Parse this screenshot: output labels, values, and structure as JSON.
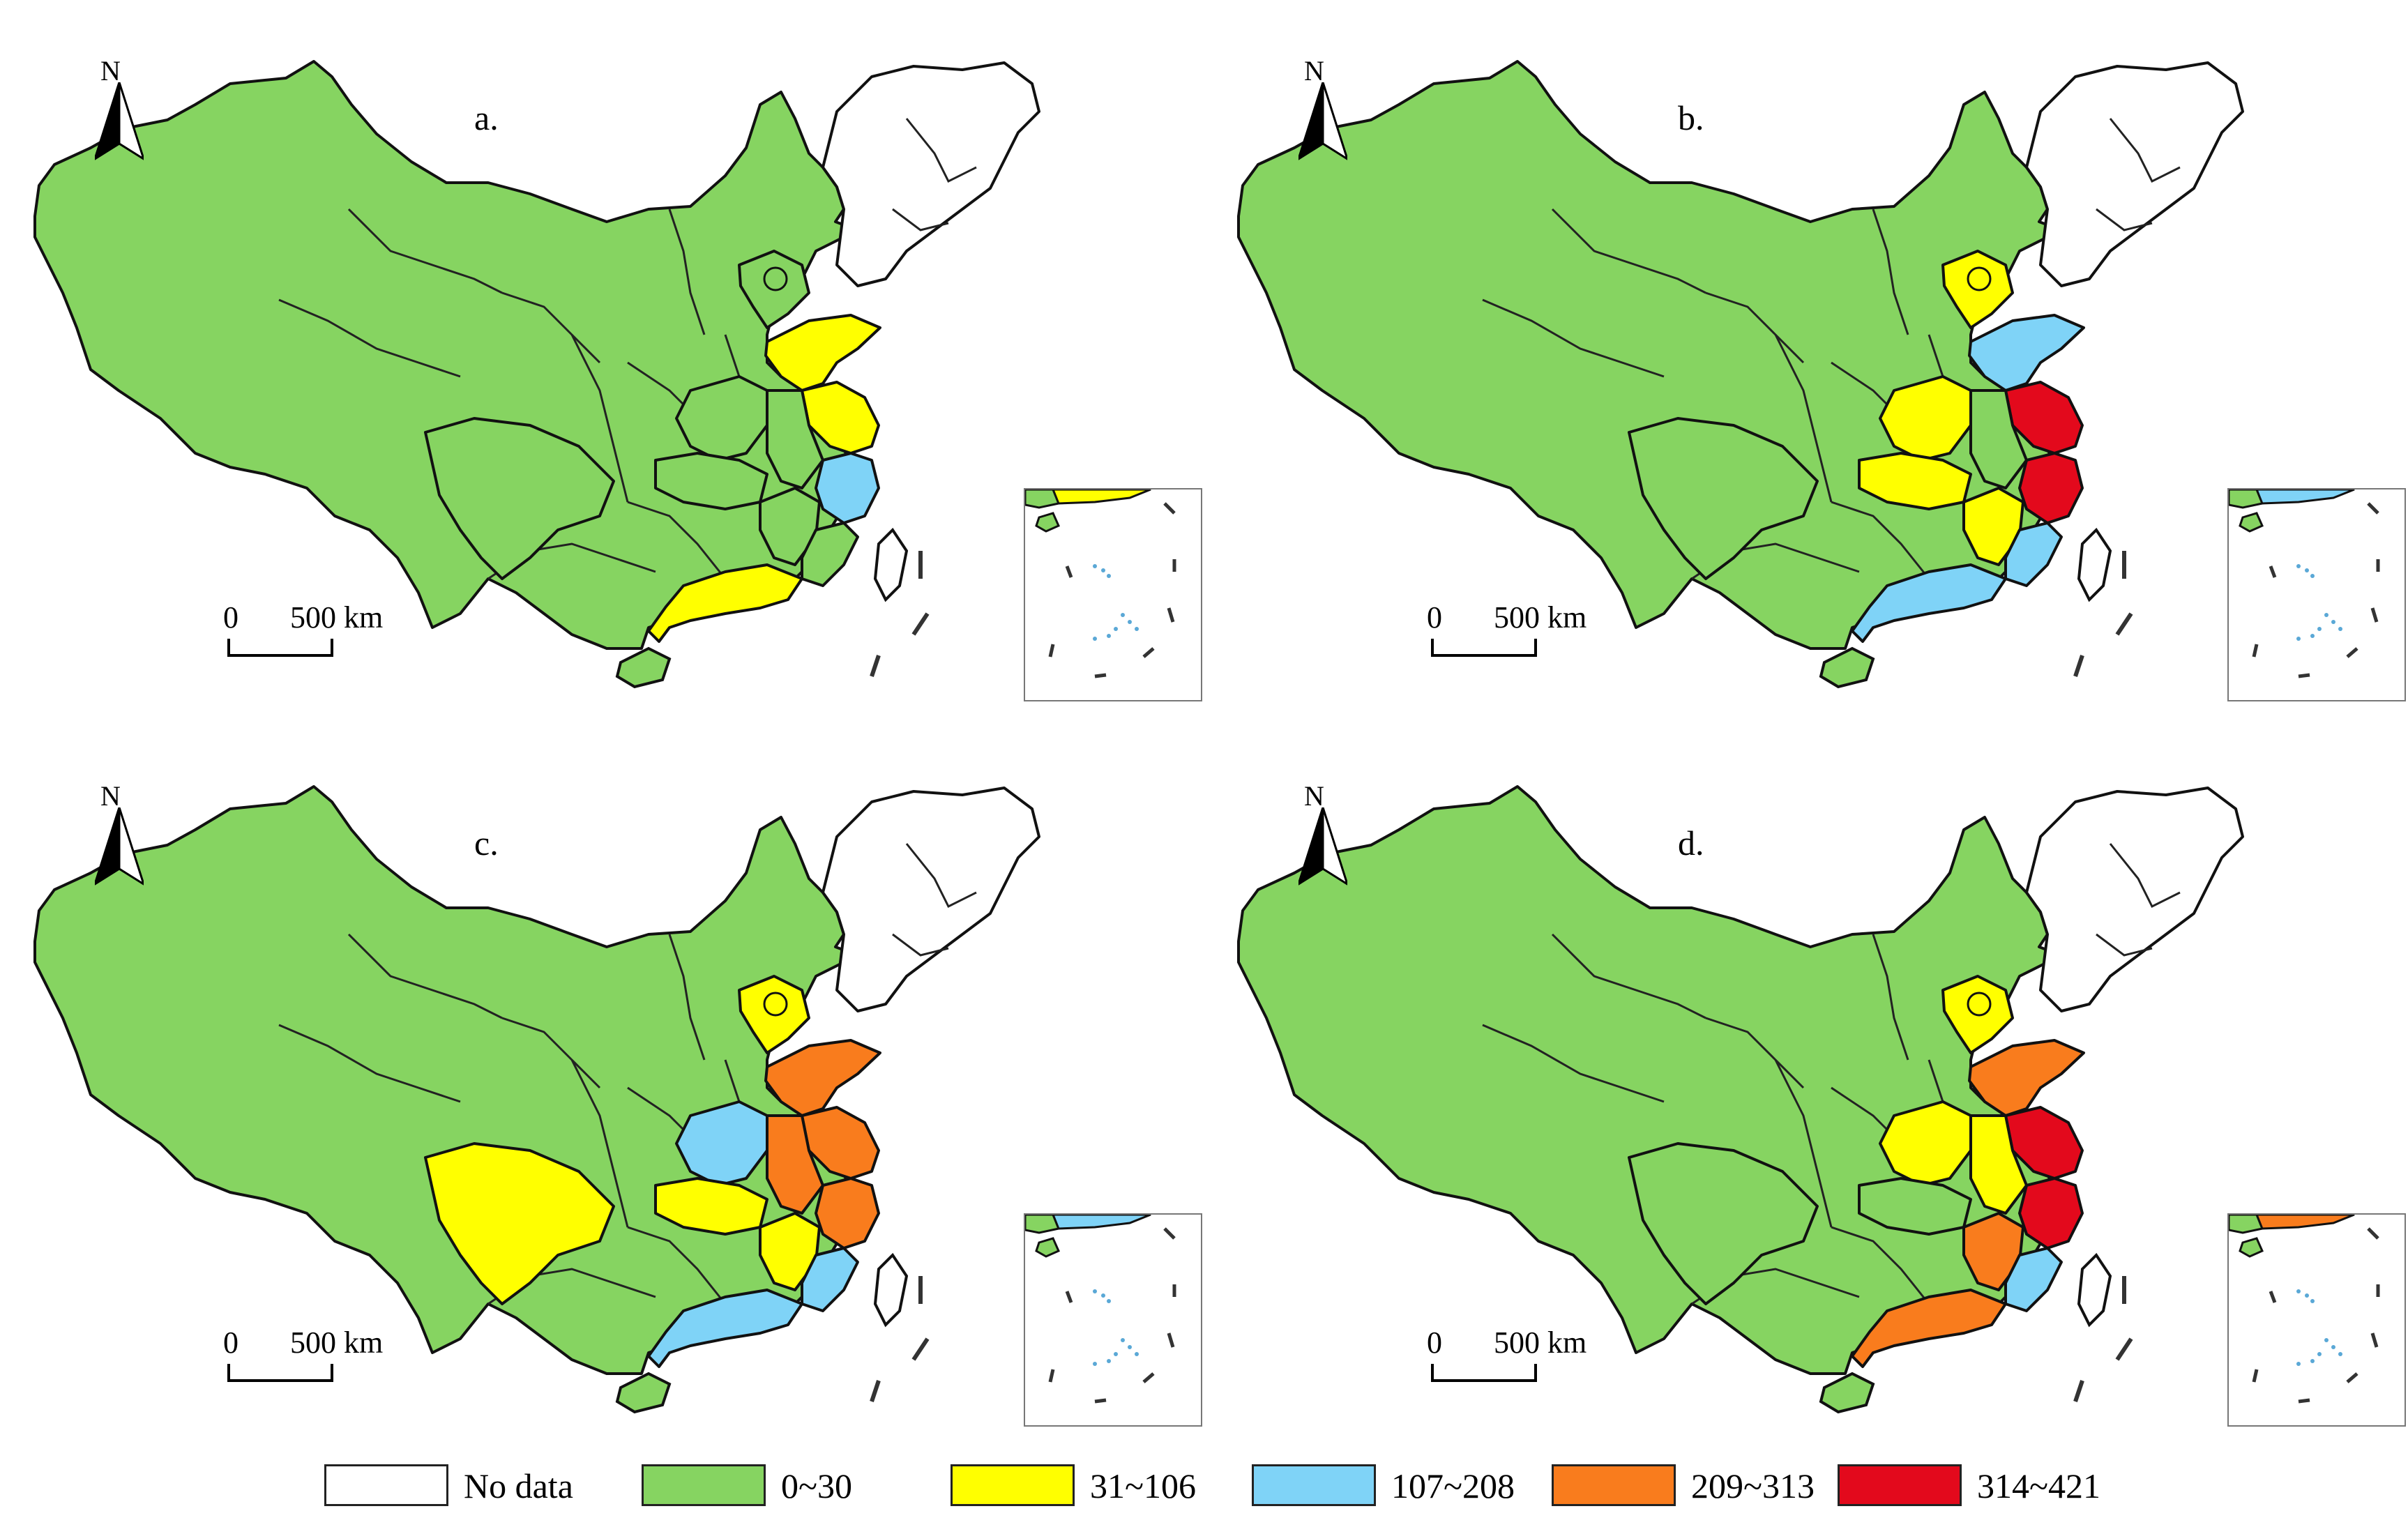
{
  "legend": {
    "items": [
      {
        "label": "No data",
        "color": "#ffffff"
      },
      {
        "label": "0~30",
        "color": "#86d461"
      },
      {
        "label": "31~106",
        "color": "#ffff00"
      },
      {
        "label": "107~208",
        "color": "#7fd3f7"
      },
      {
        "label": "209~313",
        "color": "#f97c1d"
      },
      {
        "label": "314~421",
        "color": "#e3091c"
      }
    ]
  },
  "compass": {
    "letter": "N",
    "icon": "north-arrow-icon"
  },
  "scale": {
    "zero": "0",
    "distance": "500 km"
  },
  "panels": [
    {
      "label": "a.",
      "classes": {
        "north": 1,
        "shandong": 2,
        "jiangsu": 2,
        "zhejiang": 3,
        "guangdong": 2,
        "beijing": 1,
        "anhui": 1,
        "henan": 1,
        "hubei": 1,
        "jiangxi": 1,
        "fujian": 1,
        "sichuan": 1,
        "inset": 2
      }
    },
    {
      "label": "b.",
      "classes": {
        "north": 2,
        "shandong": 3,
        "jiangsu": 5,
        "zhejiang": 5,
        "guangdong": 3,
        "beijing": 2,
        "anhui": 1,
        "henan": 2,
        "hubei": 2,
        "jiangxi": 2,
        "fujian": 3,
        "sichuan": 1,
        "inset": 3
      }
    },
    {
      "label": "c.",
      "classes": {
        "north": 2,
        "shandong": 4,
        "jiangsu": 4,
        "zhejiang": 4,
        "guangdong": 3,
        "beijing": 2,
        "anhui": 4,
        "henan": 3,
        "hubei": 2,
        "jiangxi": 2,
        "fujian": 3,
        "sichuan": 2,
        "inset": 3
      }
    },
    {
      "label": "d.",
      "classes": {
        "north": 2,
        "shandong": 4,
        "jiangsu": 5,
        "zhejiang": 5,
        "guangdong": 4,
        "beijing": 2,
        "anhui": 2,
        "henan": 2,
        "hubei": 1,
        "jiangxi": 4,
        "fujian": 3,
        "sichuan": 1,
        "inset": 4
      }
    }
  ]
}
